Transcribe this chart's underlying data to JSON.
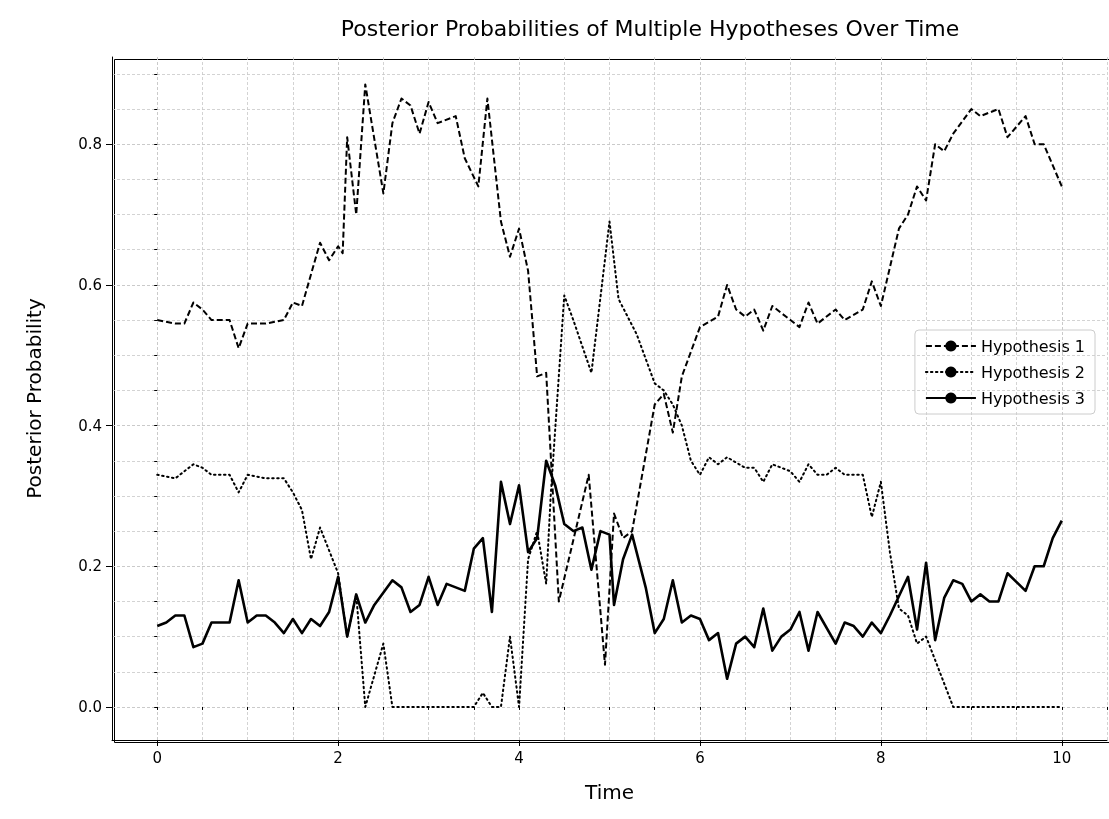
{
  "chart_data": {
    "type": "line",
    "title": "Posterior Probabilities of Multiple Hypotheses Over Time",
    "xlabel": "Time",
    "ylabel": "Posterior Probability",
    "xlim": [
      -0.5,
      10.5
    ],
    "ylim": [
      -0.047,
      0.924
    ],
    "xticks": [
      0,
      2,
      4,
      6,
      8,
      10
    ],
    "yticks": [
      {
        "value": 0,
        "label": "0.0"
      },
      {
        "value": 0.2,
        "label": "0.2"
      },
      {
        "value": 0.4,
        "label": "0.4"
      },
      {
        "value": 0.6,
        "label": "0.6"
      },
      {
        "value": 0.8,
        "label": "0.8"
      }
    ],
    "grid": true,
    "legend": "right",
    "marker": "none",
    "series": [
      {
        "name": "Hypothesis 1",
        "color": "#000000",
        "line_style": "dashed",
        "x": [
          0,
          0.2,
          0.3,
          0.4,
          0.5,
          0.6,
          0.8,
          0.9,
          1.0,
          1.2,
          1.4,
          1.5,
          1.6,
          1.8,
          1.9,
          2.0,
          2.05,
          2.1,
          2.2,
          2.3,
          2.5,
          2.6,
          2.7,
          2.8,
          2.9,
          3.0,
          3.1,
          3.3,
          3.4,
          3.55,
          3.65,
          3.8,
          3.9,
          4.0,
          4.1,
          4.2,
          4.3,
          4.44,
          4.77,
          4.95,
          5.05,
          5.15,
          5.25,
          5.5,
          5.6,
          5.7,
          5.8,
          6.0,
          6.2,
          6.3,
          6.4,
          6.5,
          6.6,
          6.7,
          6.8,
          7.0,
          7.1,
          7.2,
          7.3,
          7.5,
          7.6,
          7.8,
          7.9,
          8.0,
          8.2,
          8.3,
          8.4,
          8.5,
          8.6,
          8.7,
          8.8,
          9.0,
          9.1,
          9.3,
          9.4,
          9.6,
          9.7,
          9.8,
          10.0
        ],
        "values": [
          0.55,
          0.545,
          0.545,
          0.575,
          0.565,
          0.55,
          0.55,
          0.51,
          0.545,
          0.545,
          0.55,
          0.575,
          0.57,
          0.66,
          0.635,
          0.655,
          0.645,
          0.81,
          0.7,
          0.885,
          0.73,
          0.83,
          0.865,
          0.855,
          0.815,
          0.86,
          0.83,
          0.84,
          0.78,
          0.74,
          0.865,
          0.69,
          0.64,
          0.68,
          0.62,
          0.47,
          0.475,
          0.15,
          0.33,
          0.06,
          0.275,
          0.24,
          0.25,
          0.43,
          0.445,
          0.39,
          0.47,
          0.54,
          0.555,
          0.6,
          0.565,
          0.555,
          0.565,
          0.535,
          0.57,
          0.55,
          0.54,
          0.575,
          0.545,
          0.565,
          0.55,
          0.565,
          0.605,
          0.57,
          0.68,
          0.7,
          0.74,
          0.72,
          0.8,
          0.79,
          0.815,
          0.85,
          0.84,
          0.85,
          0.81,
          0.84,
          0.8,
          0.8,
          0.74
        ]
      },
      {
        "name": "Hypothesis 2",
        "color": "#000000",
        "line_style": "dotted",
        "x": [
          0,
          0.2,
          0.4,
          0.5,
          0.6,
          0.8,
          0.9,
          1.0,
          1.2,
          1.4,
          1.5,
          1.6,
          1.7,
          1.8,
          2.0,
          2.1,
          2.2,
          2.3,
          2.5,
          2.6,
          3.0,
          3.5,
          3.6,
          3.7,
          3.8,
          3.9,
          4.0,
          4.1,
          4.2,
          4.3,
          4.35,
          4.5,
          4.6,
          4.8,
          5.0,
          5.1,
          5.3,
          5.5,
          5.6,
          5.7,
          5.8,
          5.9,
          6.0,
          6.1,
          6.2,
          6.3,
          6.5,
          6.6,
          6.7,
          6.8,
          7.0,
          7.1,
          7.2,
          7.3,
          7.4,
          7.5,
          7.6,
          7.8,
          7.9,
          8.0,
          8.1,
          8.2,
          8.3,
          8.4,
          8.5,
          8.8,
          10.0
        ],
        "values": [
          0.33,
          0.325,
          0.345,
          0.34,
          0.33,
          0.33,
          0.305,
          0.33,
          0.325,
          0.325,
          0.305,
          0.28,
          0.21,
          0.255,
          0.19,
          0.1,
          0.16,
          0.0,
          0.09,
          0.0,
          0.0,
          0.0,
          0.02,
          0.0,
          0.0,
          0.1,
          0.0,
          0.21,
          0.25,
          0.175,
          0.3,
          0.585,
          0.55,
          0.475,
          0.69,
          0.58,
          0.53,
          0.46,
          0.45,
          0.43,
          0.4,
          0.35,
          0.33,
          0.355,
          0.345,
          0.355,
          0.34,
          0.34,
          0.32,
          0.345,
          0.335,
          0.32,
          0.345,
          0.33,
          0.33,
          0.34,
          0.33,
          0.33,
          0.27,
          0.32,
          0.22,
          0.14,
          0.13,
          0.09,
          0.1,
          0.0,
          0.0
        ]
      },
      {
        "name": "Hypothesis 3",
        "color": "#000000",
        "line_style": "solid",
        "x": [
          0,
          0.1,
          0.2,
          0.3,
          0.4,
          0.5,
          0.6,
          0.8,
          0.9,
          1.0,
          1.1,
          1.2,
          1.3,
          1.4,
          1.5,
          1.6,
          1.7,
          1.8,
          1.9,
          2.0,
          2.1,
          2.2,
          2.3,
          2.4,
          2.6,
          2.7,
          2.8,
          2.9,
          3.0,
          3.1,
          3.2,
          3.3,
          3.4,
          3.5,
          3.6,
          3.7,
          3.8,
          3.9,
          4.0,
          4.1,
          4.2,
          4.3,
          4.4,
          4.5,
          4.6,
          4.7,
          4.8,
          4.9,
          5.0,
          5.05,
          5.15,
          5.25,
          5.4,
          5.5,
          5.6,
          5.7,
          5.8,
          5.9,
          6.0,
          6.1,
          6.2,
          6.3,
          6.4,
          6.5,
          6.6,
          6.7,
          6.8,
          6.9,
          7.0,
          7.1,
          7.2,
          7.3,
          7.5,
          7.6,
          7.7,
          7.8,
          7.9,
          8.0,
          8.1,
          8.3,
          8.4,
          8.5,
          8.6,
          8.7,
          8.8,
          8.9,
          9.0,
          9.1,
          9.2,
          9.3,
          9.4,
          9.6,
          9.7,
          9.8,
          9.9,
          10.0
        ],
        "values": [
          0.115,
          0.12,
          0.13,
          0.13,
          0.085,
          0.09,
          0.12,
          0.12,
          0.18,
          0.12,
          0.13,
          0.13,
          0.12,
          0.105,
          0.125,
          0.105,
          0.125,
          0.115,
          0.135,
          0.185,
          0.1,
          0.16,
          0.12,
          0.145,
          0.18,
          0.17,
          0.135,
          0.145,
          0.185,
          0.145,
          0.175,
          0.17,
          0.165,
          0.225,
          0.24,
          0.135,
          0.32,
          0.26,
          0.315,
          0.22,
          0.24,
          0.35,
          0.315,
          0.26,
          0.25,
          0.255,
          0.195,
          0.25,
          0.245,
          0.145,
          0.21,
          0.245,
          0.17,
          0.105,
          0.125,
          0.18,
          0.12,
          0.13,
          0.125,
          0.095,
          0.105,
          0.04,
          0.09,
          0.1,
          0.085,
          0.14,
          0.08,
          0.1,
          0.11,
          0.135,
          0.08,
          0.135,
          0.09,
          0.12,
          0.115,
          0.1,
          0.12,
          0.105,
          0.13,
          0.185,
          0.11,
          0.205,
          0.095,
          0.155,
          0.18,
          0.175,
          0.15,
          0.16,
          0.15,
          0.15,
          0.19,
          0.165,
          0.2,
          0.2,
          0.24,
          0.265
        ]
      }
    ]
  }
}
